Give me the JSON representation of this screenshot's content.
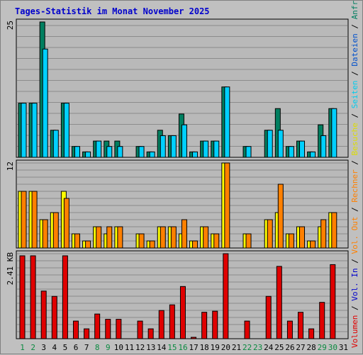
{
  "title": "Tages-Statistik im Monat November 2025",
  "colors": {
    "background": "#c0c0c0",
    "plot_bg": "#b9b9b9",
    "grid": "#8c8c8c",
    "anfragen": "#007f60",
    "dateien": "#0080ff",
    "seiten": "#00d0ff",
    "besuche": "#ffff00",
    "rechner": "#ff8000",
    "out": "#ff8000",
    "in": "#0000ff",
    "volumen": "#e00000",
    "weekend_label": "#0a8a40",
    "weekday_label": "#000000",
    "title": "#0000cc"
  },
  "right_label": [
    {
      "text": "Volumen",
      "color": "#e00000"
    },
    {
      "text": " / ",
      "color": "#000000"
    },
    {
      "text": "Vol. In",
      "color": "#0000cc"
    },
    {
      "text": " / ",
      "color": "#000000"
    },
    {
      "text": "Vol. Out",
      "color": "#ff8000"
    },
    {
      "text": " / ",
      "color": "#000000"
    },
    {
      "text": "Rechner",
      "color": "#ff8000"
    },
    {
      "text": " / ",
      "color": "#000000"
    },
    {
      "text": "Besuche",
      "color": "#dddd00"
    },
    {
      "text": " / ",
      "color": "#000000"
    },
    {
      "text": "Seiten",
      "color": "#00ccee"
    },
    {
      "text": " / ",
      "color": "#000000"
    },
    {
      "text": "Dateien",
      "color": "#0050cc"
    },
    {
      "text": " / ",
      "color": "#000000"
    },
    {
      "text": "Anfragen",
      "color": "#007f60"
    }
  ],
  "chart_data": {
    "type": "bar",
    "title": "Tages-Statistik im Monat November 2025",
    "categories": [
      "1",
      "2",
      "3",
      "4",
      "5",
      "6",
      "7",
      "8",
      "9",
      "10",
      "11",
      "12",
      "13",
      "14",
      "15",
      "16",
      "17",
      "18",
      "19",
      "20",
      "21",
      "22",
      "23",
      "24",
      "25",
      "26",
      "27",
      "28",
      "29",
      "30",
      "31"
    ],
    "weekend_days": [
      "1",
      "2",
      "8",
      "9",
      "15",
      "16",
      "22",
      "23",
      "29",
      "30"
    ],
    "panels": [
      {
        "name": "requests",
        "axis_max_label": "25",
        "ymax": 25,
        "series": [
          {
            "name": "Anfragen",
            "values": [
              10,
              10,
              25,
              5,
              10,
              2,
              1,
              3,
              3,
              3,
              0,
              2,
              1,
              5,
              4,
              8,
              1,
              3,
              3,
              13,
              0,
              2,
              0,
              5,
              9,
              2,
              3,
              1,
              6,
              9,
              0
            ]
          },
          {
            "name": "Seiten",
            "values": [
              10,
              10,
              20,
              5,
              10,
              2,
              1,
              3,
              2,
              2,
              0,
              2,
              1,
              4,
              4,
              6,
              1,
              3,
              3,
              13,
              0,
              2,
              0,
              5,
              5,
              2,
              3,
              1,
              4,
              9,
              0
            ]
          }
        ]
      },
      {
        "name": "visits",
        "axis_max_label": "12",
        "ymax": 12,
        "series": [
          {
            "name": "Besuche",
            "values": [
              8,
              8,
              4,
              5,
              8,
              2,
              1,
              3,
              2,
              3,
              0,
              2,
              1,
              3,
              3,
              2,
              1,
              3,
              2,
              12,
              0,
              2,
              0,
              4,
              5,
              2,
              3,
              1,
              3,
              5,
              0
            ]
          },
          {
            "name": "Rechner",
            "values": [
              8,
              8,
              4,
              5,
              7,
              2,
              1,
              3,
              3,
              3,
              0,
              2,
              1,
              3,
              3,
              4,
              1,
              3,
              2,
              12,
              0,
              2,
              0,
              4,
              9,
              2,
              3,
              1,
              4,
              5,
              0
            ]
          }
        ]
      },
      {
        "name": "volume",
        "axis_max_label": "2.41 KB",
        "ymax": 2.41,
        "series": [
          {
            "name": "Volumen",
            "values": [
              2.35,
              2.35,
              1.35,
              1.2,
              2.35,
              0.5,
              0.28,
              0.7,
              0.55,
              0.55,
              0,
              0.5,
              0.28,
              0.8,
              0.96,
              1.48,
              0.04,
              0.75,
              0.78,
              2.41,
              0,
              0.5,
              0,
              1.2,
              2.05,
              0.5,
              0.75,
              0.28,
              1.03,
              2.1,
              0
            ]
          }
        ]
      }
    ]
  }
}
